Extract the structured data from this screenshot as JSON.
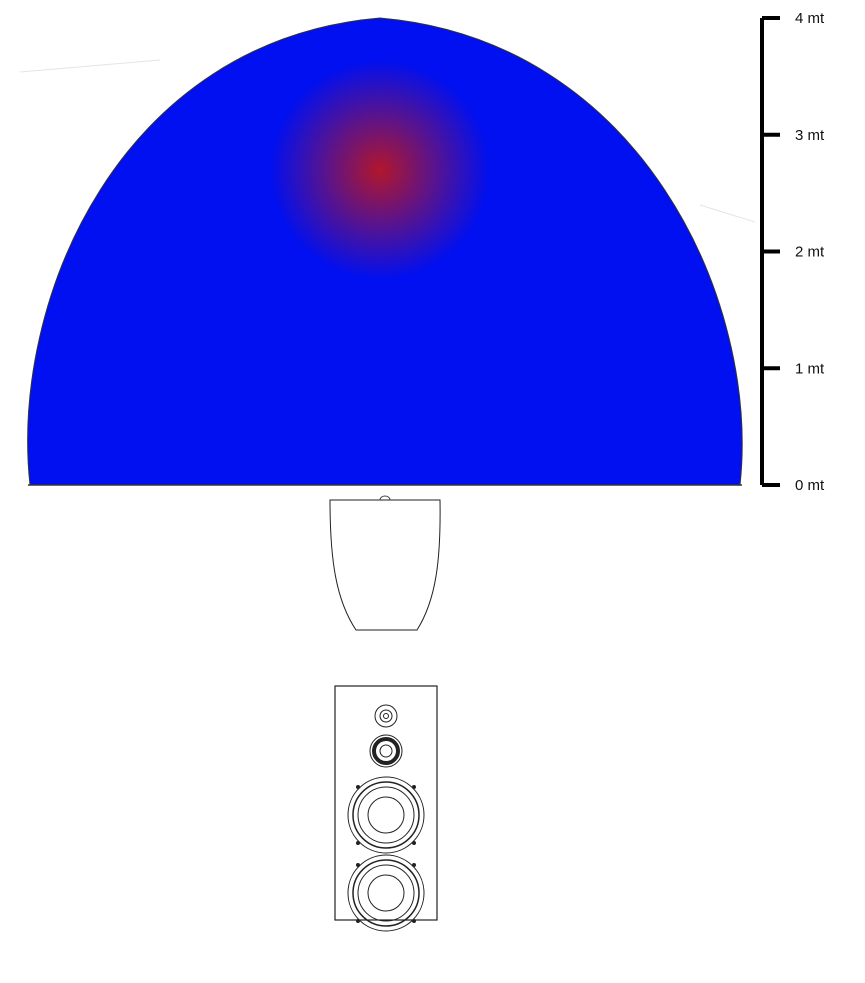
{
  "scale": {
    "unit": "mt",
    "ticks": [
      {
        "value": 0,
        "label": "0 mt"
      },
      {
        "value": 1,
        "label": "1 mt"
      },
      {
        "value": 2,
        "label": "2 mt"
      },
      {
        "value": 3,
        "label": "3 mt"
      },
      {
        "value": 4,
        "label": "4 mt"
      }
    ]
  },
  "colors": {
    "near": "#0010f0",
    "mid": "#00e020",
    "far": "#e01000",
    "edge": "#ffffff",
    "outline": "#222222",
    "scale_bar": "#000000"
  },
  "icons": {
    "speaker_top_view": "speaker-cabinet-top-view-icon",
    "speaker_front_view": "speaker-front-view-icon"
  }
}
